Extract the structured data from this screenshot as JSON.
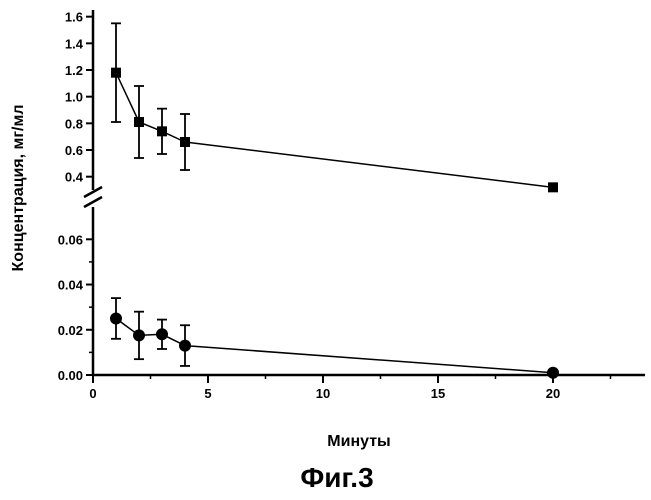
{
  "chart_data": {
    "type": "scatter",
    "ylabel": "Концентрация, мг/мл",
    "xlabel": "Минуты",
    "caption": "Фиг.3",
    "xlim": [
      0,
      24
    ],
    "x_ticks": [
      0,
      5,
      10,
      15,
      20
    ],
    "y_axis_break": true,
    "upper_panel": {
      "ylim": [
        0.3,
        1.65
      ],
      "y_ticks": [
        0.4,
        0.6,
        0.8,
        1.0,
        1.2,
        1.4,
        1.6
      ],
      "y_tick_labels": [
        "0.4",
        "0.6",
        "0.8",
        "1.0",
        "1.2",
        "1.4",
        "1.6"
      ]
    },
    "lower_panel": {
      "ylim": [
        0.0,
        0.065
      ],
      "y_ticks": [
        0.0,
        0.02,
        0.04,
        0.06
      ],
      "y_tick_labels": [
        "0.00",
        "0.02",
        "0.04",
        "0.06"
      ]
    },
    "series": [
      {
        "panel": "upper",
        "marker": "square",
        "x": [
          1,
          2,
          3,
          4,
          20
        ],
        "y": [
          1.18,
          0.81,
          0.74,
          0.66,
          0.32
        ],
        "err": [
          0.37,
          0.27,
          0.17,
          0.21,
          0
        ],
        "fit_line": {
          "from": [
            4,
            0.66
          ],
          "to": [
            20,
            0.32
          ]
        }
      },
      {
        "panel": "lower",
        "marker": "circle",
        "x": [
          1,
          2,
          3,
          4,
          20
        ],
        "y": [
          0.025,
          0.0175,
          0.018,
          0.013,
          0.001
        ],
        "err": [
          0.009,
          0.0105,
          0.0065,
          0.009,
          0
        ],
        "fit_line": {
          "from": [
            4,
            0.013
          ],
          "to": [
            20,
            0.001
          ]
        }
      }
    ],
    "grid": false,
    "legend": "none"
  }
}
